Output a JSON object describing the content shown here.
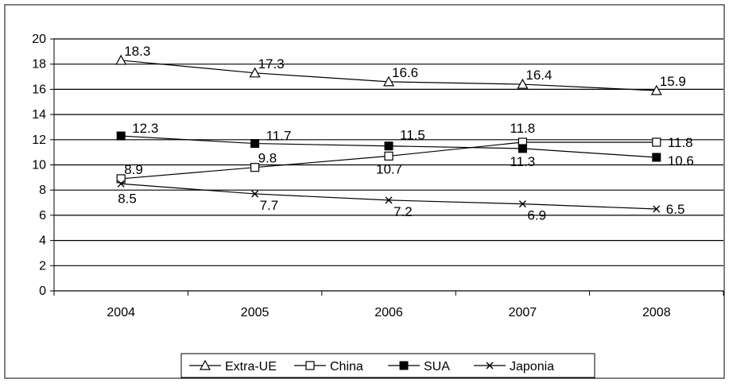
{
  "chart_data": {
    "type": "line",
    "categories": [
      "2004",
      "2005",
      "2006",
      "2007",
      "2008"
    ],
    "ylim": [
      0,
      20
    ],
    "yticks": [
      0,
      2,
      4,
      6,
      8,
      10,
      12,
      14,
      16,
      18,
      20
    ],
    "grid": "horizontal",
    "legend_position": "bottom",
    "colors": {
      "line": "#000000",
      "background": "#ffffff"
    },
    "series": [
      {
        "name": "Extra-UE",
        "marker": "triangle-open",
        "values": [
          18.3,
          17.3,
          16.6,
          16.4,
          15.9
        ],
        "labels": [
          "18.3",
          "17.3",
          "16.6",
          "16.4",
          "15.9"
        ]
      },
      {
        "name": "China",
        "marker": "square-open",
        "values": [
          8.9,
          9.8,
          10.7,
          11.8,
          11.8
        ],
        "labels": [
          "8.9",
          "9.8",
          "10.7",
          "11.8",
          "11.8"
        ]
      },
      {
        "name": "SUA",
        "marker": "square-filled",
        "values": [
          12.3,
          11.7,
          11.5,
          11.3,
          10.6
        ],
        "labels": [
          "12.3",
          "11.7",
          "11.5",
          "11.3",
          "10.6"
        ]
      },
      {
        "name": "Japonia",
        "marker": "x",
        "values": [
          8.5,
          7.7,
          7.2,
          6.9,
          6.5
        ],
        "labels": [
          "8.5",
          "7.7",
          "7.2",
          "6.9",
          "6.5"
        ]
      }
    ]
  }
}
